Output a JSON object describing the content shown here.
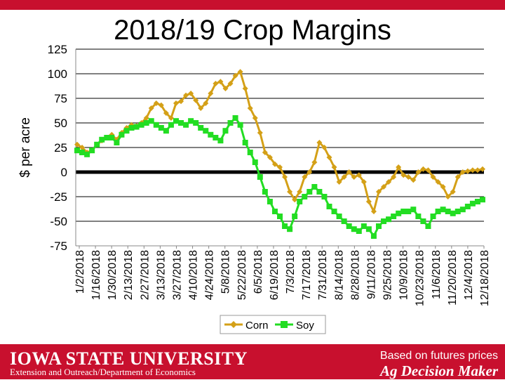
{
  "slide": {
    "title": "2018/19 Crop Margins"
  },
  "footer": {
    "university": "IOWA STATE UNIVERSITY",
    "department": "Extension and Outreach/Department of Economics",
    "note": "Based on futures prices",
    "brand": "Ag Decision Maker"
  },
  "colors": {
    "brand_red": "#c8102e",
    "corn": "#d4a017",
    "soy": "#22dd22"
  },
  "chart_data": {
    "type": "line",
    "title": "2018/19 Crop Margins",
    "ylabel": "$ per acre",
    "xlabel": "",
    "ylim": [
      -75,
      125
    ],
    "yticks": [
      -75,
      -50,
      -25,
      0,
      25,
      50,
      75,
      100,
      125
    ],
    "grid": true,
    "legend": "bottom",
    "x_tick_labels": [
      "1/2/2018",
      "1/16/2018",
      "1/30/2018",
      "2/13/2018",
      "2/27/2018",
      "3/13/2018",
      "3/27/2018",
      "4/10/2018",
      "4/24/2018",
      "5/8/2018",
      "5/22/2018",
      "6/5/2018",
      "6/19/2018",
      "7/3/2018",
      "7/17/2018",
      "7/31/2018",
      "8/14/2018",
      "8/28/2018",
      "9/11/2018",
      "9/25/2018",
      "10/9/2018",
      "10/23/2018",
      "11/6/2018",
      "11/20/2018",
      "12/4/2018",
      "12/18/2018"
    ],
    "series": [
      {
        "name": "Corn",
        "color": "#d4a017",
        "marker": "diamond",
        "values": [
          28,
          25,
          20,
          22,
          28,
          32,
          35,
          38,
          33,
          40,
          45,
          48,
          47,
          50,
          55,
          65,
          70,
          68,
          60,
          55,
          70,
          72,
          78,
          80,
          73,
          65,
          70,
          80,
          90,
          92,
          85,
          90,
          98,
          102,
          85,
          65,
          55,
          40,
          20,
          15,
          8,
          5,
          -5,
          -20,
          -28,
          -20,
          -5,
          0,
          10,
          30,
          25,
          15,
          5,
          -10,
          -5,
          0,
          -5,
          -3,
          -10,
          -30,
          -40,
          -20,
          -15,
          -10,
          -5,
          5,
          -3,
          -5,
          -8,
          0,
          3,
          2,
          -5,
          -10,
          -15,
          -25,
          -20,
          -5,
          0,
          1,
          2,
          2,
          3
        ]
      },
      {
        "name": "Soy",
        "color": "#22dd22",
        "marker": "square",
        "values": [
          22,
          20,
          18,
          22,
          28,
          33,
          35,
          35,
          30,
          38,
          42,
          45,
          46,
          48,
          50,
          52,
          48,
          45,
          42,
          48,
          52,
          50,
          48,
          52,
          50,
          45,
          42,
          38,
          35,
          32,
          42,
          50,
          55,
          48,
          30,
          20,
          10,
          -5,
          -20,
          -30,
          -40,
          -45,
          -55,
          -58,
          -45,
          -30,
          -25,
          -20,
          -15,
          -20,
          -25,
          -35,
          -40,
          -45,
          -50,
          -55,
          -58,
          -60,
          -55,
          -58,
          -65,
          -55,
          -50,
          -48,
          -45,
          -42,
          -40,
          -40,
          -38,
          -45,
          -50,
          -55,
          -45,
          -40,
          -38,
          -40,
          -42,
          -40,
          -38,
          -35,
          -32,
          -30,
          -28
        ]
      }
    ]
  }
}
